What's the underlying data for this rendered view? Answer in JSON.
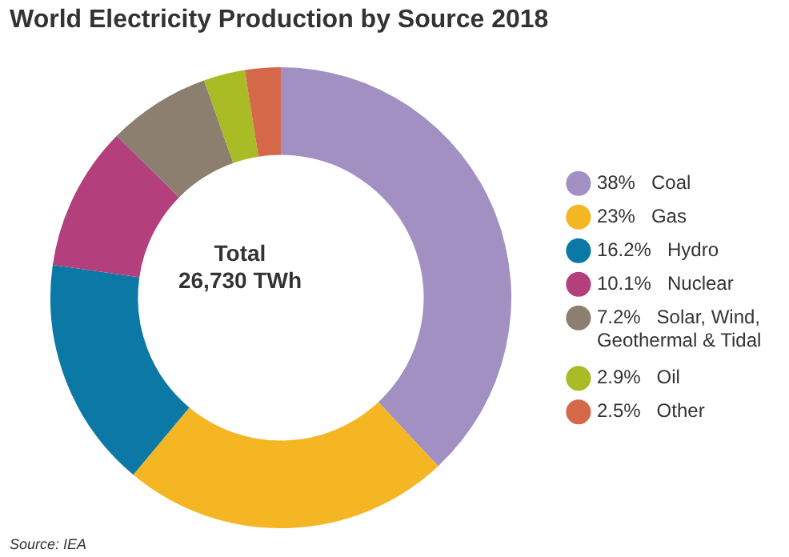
{
  "chart_data": {
    "type": "donut",
    "title": "World Electricity Production by Source 2018",
    "categories": [
      "Coal",
      "Gas",
      "Hydro",
      "Nuclear",
      "Solar, Wind, Geothermal & Tidal",
      "Oil",
      "Other"
    ],
    "values": [
      38,
      23,
      16.2,
      10.1,
      7.2,
      2.9,
      2.5
    ],
    "value_labels": [
      "38%",
      "23%",
      "16.2%",
      "10.1%",
      "7.2%",
      "2.9%",
      "2.5%"
    ],
    "colors": [
      "#a290c2",
      "#f5b624",
      "#0b78a6",
      "#b3407c",
      "#8c7f6f",
      "#a9bb25",
      "#d6684a"
    ],
    "legend": "right",
    "annotations": [
      "Total\n26,730 TWh",
      "Source: IEA"
    ]
  }
}
